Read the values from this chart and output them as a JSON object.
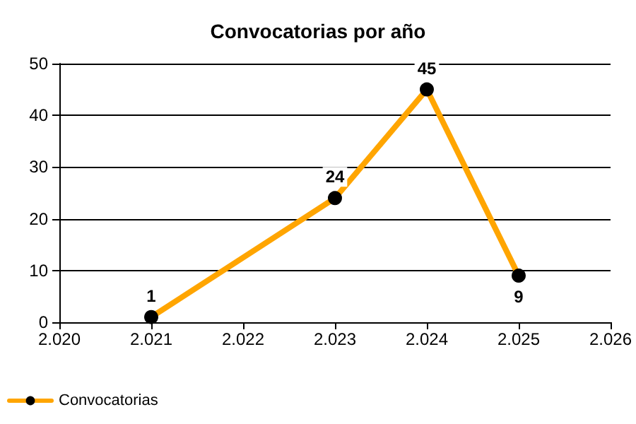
{
  "chart_data": {
    "type": "line",
    "title": "Convocatorias por año",
    "x": [
      2021,
      2023,
      2024,
      2025
    ],
    "series": [
      {
        "name": "Convocatorias",
        "color": "#ffa500",
        "values": [
          1,
          24,
          45,
          9
        ]
      }
    ],
    "xlim": [
      2020,
      2026
    ],
    "xticks": [
      {
        "value": 2020,
        "label": "2.020"
      },
      {
        "value": 2021,
        "label": "2.021"
      },
      {
        "value": 2022,
        "label": "2.022"
      },
      {
        "value": 2023,
        "label": "2.023"
      },
      {
        "value": 2024,
        "label": "2.024"
      },
      {
        "value": 2025,
        "label": "2.025"
      },
      {
        "value": 2026,
        "label": "2.026"
      }
    ],
    "ylim": [
      0,
      50
    ],
    "yticks": [
      0,
      10,
      20,
      30,
      40,
      50
    ],
    "grid": "y",
    "legend": "bottom left",
    "marker": "circle",
    "line_style": "solid",
    "data_labels": true
  }
}
